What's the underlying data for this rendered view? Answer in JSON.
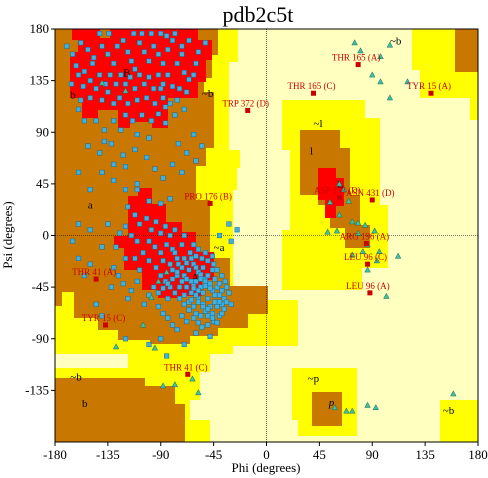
{
  "chart_data": {
    "type": "scatter",
    "title": "pdb2c5t",
    "xlabel": "Phi (degrees)",
    "ylabel": "Psi (degrees)",
    "xlim": [
      -180,
      180
    ],
    "ylim": [
      -180,
      180
    ],
    "x_ticks": [
      -180,
      -135,
      -90,
      -45,
      0,
      45,
      90,
      135,
      180
    ],
    "y_ticks": [
      180,
      135,
      90,
      45,
      0,
      -45,
      -90,
      -135
    ],
    "x_tick_labels": [
      "-180",
      "-135",
      "-90",
      "-45",
      "0",
      "45",
      "90",
      "135",
      "180"
    ],
    "y_tick_labels": [
      "180",
      "135",
      "90",
      "45",
      "0",
      "-45",
      "-90",
      "-135"
    ],
    "colors": {
      "core": "#ff0000",
      "allowed": "#c87800",
      "generous": "#ffff00",
      "disallowed": "#ffffc0",
      "glycine_marker": "#40c0a0",
      "residue_marker": "#40b0e0",
      "outlier_marker": "#cc0000",
      "outlier_label": "#cc0000"
    },
    "region_labels": [
      {
        "text": "A",
        "phi": -64,
        "psi": -36,
        "italic": false
      },
      {
        "text": "B",
        "phi": -122,
        "psi": 142,
        "italic": false
      },
      {
        "text": "L",
        "phi": 60,
        "psi": 45,
        "italic": false
      },
      {
        "text": "a",
        "phi": -152,
        "psi": 27,
        "italic": false
      },
      {
        "text": "b",
        "phi": -167,
        "psi": 123,
        "italic": false
      },
      {
        "text": "b",
        "phi": -157,
        "psi": -146,
        "italic": false
      },
      {
        "text": "l",
        "phi": 37,
        "psi": 74,
        "italic": false
      },
      {
        "text": "p",
        "phi": 53,
        "psi": -145,
        "italic": true
      },
      {
        "text": "~a",
        "phi": -45,
        "psi": -10,
        "italic": false
      },
      {
        "text": "~b",
        "phi": -167,
        "psi": -123,
        "italic": false
      },
      {
        "text": "~b",
        "phi": -55,
        "psi": 124,
        "italic": false
      },
      {
        "text": "~b",
        "phi": 105,
        "psi": 170,
        "italic": false
      },
      {
        "text": "~b",
        "phi": 150,
        "psi": -152,
        "italic": false
      },
      {
        "text": "~l",
        "phi": 40,
        "psi": 98,
        "italic": false
      },
      {
        "text": "~p",
        "phi": 35,
        "psi": -124,
        "italic": false
      }
    ],
    "labelled_outliers": [
      {
        "label": "THR 165 (A)",
        "phi": 78,
        "psi": 149
      },
      {
        "label": "THR 165 (C)",
        "phi": 40,
        "psi": 124
      },
      {
        "label": "TYR 15 (A)",
        "phi": 140,
        "psi": 124
      },
      {
        "label": "TRP 372 (D)",
        "phi": -16,
        "psi": 109
      },
      {
        "label": "PRO 176 (B)",
        "phi": -48,
        "psi": 28
      },
      {
        "label": "ASP 333 (D)",
        "phi": 62,
        "psi": 33
      },
      {
        "label": "ASN 431 (D)",
        "phi": 90,
        "psi": 31
      },
      {
        "label": "ARG 196 (A)",
        "phi": 85,
        "psi": -7
      },
      {
        "label": "LEU 96 (C)",
        "phi": 86,
        "psi": -25
      },
      {
        "label": "LEU 96 (A)",
        "phi": 88,
        "psi": -50
      },
      {
        "label": "THR 41 (A)",
        "phi": -145,
        "psi": -38
      },
      {
        "label": "TYR 15 (C)",
        "phi": -137,
        "psi": -78
      },
      {
        "label": "THR 41 (C)",
        "phi": -67,
        "psi": -121
      }
    ],
    "glycine_points": [
      [
        75,
        168
      ],
      [
        80,
        161
      ],
      [
        97,
        156
      ],
      [
        105,
        166
      ],
      [
        90,
        140
      ],
      [
        97,
        134
      ],
      [
        105,
        120
      ],
      [
        120,
        134
      ],
      [
        62,
        45
      ],
      [
        66,
        40
      ],
      [
        70,
        30
      ],
      [
        54,
        29
      ],
      [
        62,
        18
      ],
      [
        73,
        12
      ],
      [
        78,
        11
      ],
      [
        84,
        9
      ],
      [
        92,
        4
      ],
      [
        78,
        2
      ],
      [
        60,
        4
      ],
      [
        52,
        3
      ],
      [
        86,
        -8
      ],
      [
        96,
        -14
      ],
      [
        94,
        -22
      ],
      [
        86,
        -30
      ],
      [
        82,
        -14
      ],
      [
        73,
        -17
      ],
      [
        112,
        -18
      ],
      [
        102,
        -53
      ],
      [
        58,
        -150
      ],
      [
        68,
        -153
      ],
      [
        73,
        -153
      ],
      [
        86,
        -148
      ],
      [
        93,
        -150
      ],
      [
        159,
        -138
      ],
      [
        -85,
        -32
      ],
      [
        -92,
        -40
      ],
      [
        -98,
        -54
      ],
      [
        -105,
        -78
      ],
      [
        -128,
        -97
      ],
      [
        -95,
        -98
      ],
      [
        -58,
        -137
      ],
      [
        -78,
        -130
      ],
      [
        -88,
        -131
      ],
      [
        -63,
        -125
      ],
      [
        -140,
        133
      ],
      [
        -120,
        126
      ]
    ],
    "residue_points": [
      [
        -170,
        165
      ],
      [
        -165,
        158
      ],
      [
        -158,
        168
      ],
      [
        -152,
        162
      ],
      [
        -147,
        155
      ],
      [
        -162,
        148
      ],
      [
        -155,
        143
      ],
      [
        -148,
        150
      ],
      [
        -140,
        165
      ],
      [
        -135,
        158
      ],
      [
        -130,
        150
      ],
      [
        -127,
        165
      ],
      [
        -122,
        170
      ],
      [
        -118,
        160
      ],
      [
        -115,
        152
      ],
      [
        -112,
        145
      ],
      [
        -108,
        168
      ],
      [
        -104,
        160
      ],
      [
        -100,
        152
      ],
      [
        -96,
        165
      ],
      [
        -92,
        158
      ],
      [
        -88,
        150
      ],
      [
        -84,
        162
      ],
      [
        -80,
        170
      ],
      [
        -142,
        140
      ],
      [
        -137,
        132
      ],
      [
        -133,
        140
      ],
      [
        -128,
        132
      ],
      [
        -124,
        140
      ],
      [
        -120,
        132
      ],
      [
        -116,
        138
      ],
      [
        -112,
        128
      ],
      [
        -108,
        140
      ],
      [
        -104,
        132
      ],
      [
        -100,
        138
      ],
      [
        -96,
        128
      ],
      [
        -92,
        140
      ],
      [
        -88,
        132
      ],
      [
        -84,
        140
      ],
      [
        -80,
        130
      ],
      [
        -76,
        150
      ],
      [
        -72,
        158
      ],
      [
        -70,
        142
      ],
      [
        -66,
        136
      ],
      [
        -74,
        128
      ],
      [
        -68,
        125
      ],
      [
        -62,
        140
      ],
      [
        -60,
        150
      ],
      [
        -125,
        120
      ],
      [
        -118,
        115
      ],
      [
        -110,
        118
      ],
      [
        -102,
        120
      ],
      [
        -95,
        115
      ],
      [
        -88,
        120
      ],
      [
        -82,
        115
      ],
      [
        -76,
        118
      ],
      [
        -135,
        125
      ],
      [
        -130,
        115
      ],
      [
        -140,
        118
      ],
      [
        -145,
        128
      ],
      [
        -150,
        135
      ],
      [
        -156,
        130
      ],
      [
        -160,
        140
      ],
      [
        -166,
        132
      ],
      [
        -113,
        176
      ],
      [
        -106,
        176
      ],
      [
        -98,
        176
      ],
      [
        -90,
        176
      ],
      [
        -85,
        174
      ],
      [
        -78,
        176
      ],
      [
        -134,
        176
      ],
      [
        -142,
        176
      ],
      [
        -120,
        105
      ],
      [
        -114,
        100
      ],
      [
        -106,
        105
      ],
      [
        -98,
        100
      ],
      [
        -92,
        106
      ],
      [
        -86,
        98
      ],
      [
        -78,
        105
      ],
      [
        -70,
        110
      ],
      [
        -145,
        100
      ],
      [
        -138,
        92
      ],
      [
        -130,
        100
      ],
      [
        -124,
        92
      ],
      [
        -160,
        110
      ],
      [
        -155,
        100
      ],
      [
        -110,
        88
      ],
      [
        -100,
        85
      ],
      [
        -152,
        78
      ],
      [
        -142,
        72
      ],
      [
        -132,
        80
      ],
      [
        -122,
        70
      ],
      [
        -112,
        75
      ],
      [
        -102,
        68
      ],
      [
        -95,
        58
      ],
      [
        -88,
        50
      ],
      [
        -140,
        55
      ],
      [
        -130,
        48
      ],
      [
        -120,
        40
      ],
      [
        -110,
        45
      ],
      [
        -80,
        62
      ],
      [
        -72,
        55
      ],
      [
        -150,
        40
      ],
      [
        -160,
        55
      ],
      [
        -118,
        25
      ],
      [
        -112,
        18
      ],
      [
        -108,
        10
      ],
      [
        -102,
        15
      ],
      [
        -98,
        5
      ],
      [
        -94,
        12
      ],
      [
        -90,
        2
      ],
      [
        -86,
        8
      ],
      [
        -100,
        -5
      ],
      [
        -95,
        -10
      ],
      [
        -90,
        -15
      ],
      [
        -85,
        -8
      ],
      [
        -80,
        -12
      ],
      [
        -76,
        -20
      ],
      [
        -82,
        -25
      ],
      [
        -88,
        -22
      ],
      [
        -94,
        -28
      ],
      [
        -100,
        -22
      ],
      [
        -105,
        -15
      ],
      [
        -110,
        -5
      ],
      [
        -115,
        0
      ],
      [
        -120,
        8
      ],
      [
        -125,
        2
      ],
      [
        -72,
        -8
      ],
      [
        -80,
        -30
      ],
      [
        -76,
        -35
      ],
      [
        -72,
        -40
      ],
      [
        -68,
        -45
      ],
      [
        -64,
        -50
      ],
      [
        -60,
        -40
      ],
      [
        -56,
        -45
      ],
      [
        -52,
        -38
      ],
      [
        -66,
        -30
      ],
      [
        -62,
        -25
      ],
      [
        -58,
        -32
      ],
      [
        -54,
        -28
      ],
      [
        -50,
        -35
      ],
      [
        -48,
        -42
      ],
      [
        -44,
        -38
      ],
      [
        -46,
        -30
      ],
      [
        -70,
        -35
      ],
      [
        -74,
        -45
      ],
      [
        -70,
        -52
      ],
      [
        -66,
        -58
      ],
      [
        -62,
        -62
      ],
      [
        -58,
        -55
      ],
      [
        -54,
        -50
      ],
      [
        -50,
        -55
      ],
      [
        -46,
        -48
      ],
      [
        -42,
        -45
      ],
      [
        -40,
        -52
      ],
      [
        -44,
        -58
      ],
      [
        -48,
        -62
      ],
      [
        -52,
        -66
      ],
      [
        -56,
        -70
      ],
      [
        -60,
        -68
      ],
      [
        -64,
        -40
      ],
      [
        -68,
        -38
      ],
      [
        -62,
        -44
      ],
      [
        -58,
        -48
      ],
      [
        -56,
        -38
      ],
      [
        -52,
        -44
      ],
      [
        -60,
        -52
      ],
      [
        -64,
        -56
      ],
      [
        -66,
        -65
      ],
      [
        -70,
        -60
      ],
      [
        -74,
        -55
      ],
      [
        -78,
        -50
      ],
      [
        -82,
        -45
      ],
      [
        -86,
        -40
      ],
      [
        -90,
        -35
      ],
      [
        -84,
        -55
      ],
      [
        -72,
        -70
      ],
      [
        -68,
        -75
      ],
      [
        -62,
        -72
      ],
      [
        -58,
        -76
      ],
      [
        -54,
        -60
      ],
      [
        -50,
        -64
      ],
      [
        -46,
        -68
      ],
      [
        -42,
        -62
      ],
      [
        -40,
        -42
      ],
      [
        -38,
        -48
      ],
      [
        -36,
        -55
      ],
      [
        -38,
        -60
      ],
      [
        -35,
        -40
      ],
      [
        -45,
        -25
      ],
      [
        -50,
        -22
      ],
      [
        -55,
        -20
      ],
      [
        -60,
        -18
      ],
      [
        -65,
        -15
      ],
      [
        -70,
        -20
      ],
      [
        -75,
        -25
      ],
      [
        -78,
        -15
      ],
      [
        -82,
        0
      ],
      [
        -78,
        5
      ],
      [
        -70,
        0
      ],
      [
        -62,
        -8
      ],
      [
        -58,
        -12
      ],
      [
        -52,
        -15
      ],
      [
        -46,
        -18
      ],
      [
        -42,
        -30
      ],
      [
        -38,
        -35
      ],
      [
        -34,
        -45
      ],
      [
        -32,
        -50
      ],
      [
        -96,
        -45
      ],
      [
        -100,
        -52
      ],
      [
        -104,
        -60
      ],
      [
        -92,
        -62
      ],
      [
        -88,
        -68
      ],
      [
        -84,
        -72
      ],
      [
        -80,
        -78
      ],
      [
        -76,
        -82
      ],
      [
        -110,
        -40
      ],
      [
        -115,
        -48
      ],
      [
        -118,
        -55
      ],
      [
        -122,
        -42
      ],
      [
        -126,
        -35
      ],
      [
        -130,
        -28
      ],
      [
        -108,
        -30
      ],
      [
        -112,
        -20
      ],
      [
        -150,
        -25
      ],
      [
        -155,
        -35
      ],
      [
        -160,
        -20
      ],
      [
        -145,
        -60
      ],
      [
        -140,
        -70
      ],
      [
        -100,
        -95
      ],
      [
        -90,
        -90
      ],
      [
        -70,
        -95
      ],
      [
        -60,
        -85
      ],
      [
        -55,
        -80
      ],
      [
        -50,
        -78
      ],
      [
        -45,
        -75
      ],
      [
        -40,
        -70
      ],
      [
        -48,
        -88
      ],
      [
        -85,
        -105
      ],
      [
        -120,
        -90
      ],
      [
        -32,
        10
      ],
      [
        -25,
        5
      ],
      [
        -30,
        -5
      ],
      [
        -40,
        0
      ],
      [
        -110,
        40
      ],
      [
        -100,
        30
      ],
      [
        -90,
        28
      ],
      [
        -82,
        32
      ],
      [
        -160,
        10
      ],
      [
        -165,
        -5
      ],
      [
        -150,
        5
      ],
      [
        -135,
        10
      ],
      [
        -140,
        -10
      ],
      [
        -128,
        -10
      ],
      [
        -120,
        -20
      ],
      [
        -132,
        -45
      ],
      [
        -75,
        80
      ],
      [
        -68,
        72
      ],
      [
        -60,
        65
      ],
      [
        -55,
        78
      ],
      [
        -62,
        88
      ],
      [
        -120,
        60
      ],
      [
        -130,
        62
      ],
      [
        -138,
        82
      ],
      [
        -58,
        160
      ],
      [
        -52,
        168
      ],
      [
        -66,
        170
      ],
      [
        -72,
        165
      ],
      [
        -90,
        128
      ],
      [
        -86,
        112
      ],
      [
        -150,
        120
      ],
      [
        -158,
        118
      ],
      [
        -64,
        -20
      ],
      [
        -60,
        -28
      ],
      [
        -56,
        -34
      ],
      [
        -52,
        -40
      ],
      [
        -48,
        -46
      ],
      [
        -44,
        -52
      ],
      [
        -40,
        -58
      ],
      [
        -36,
        -64
      ],
      [
        -68,
        -24
      ],
      [
        -72,
        -28
      ],
      [
        -76,
        -32
      ],
      [
        -80,
        -38
      ],
      [
        -84,
        -42
      ],
      [
        -88,
        -46
      ],
      [
        -92,
        -50
      ],
      [
        -62,
        -46
      ],
      [
        -58,
        -58
      ],
      [
        -54,
        -62
      ],
      [
        -50,
        -70
      ],
      [
        -46,
        -72
      ],
      [
        -42,
        -76
      ],
      [
        -38,
        -68
      ],
      [
        -34,
        -58
      ],
      [
        -30,
        -60
      ]
    ]
  }
}
